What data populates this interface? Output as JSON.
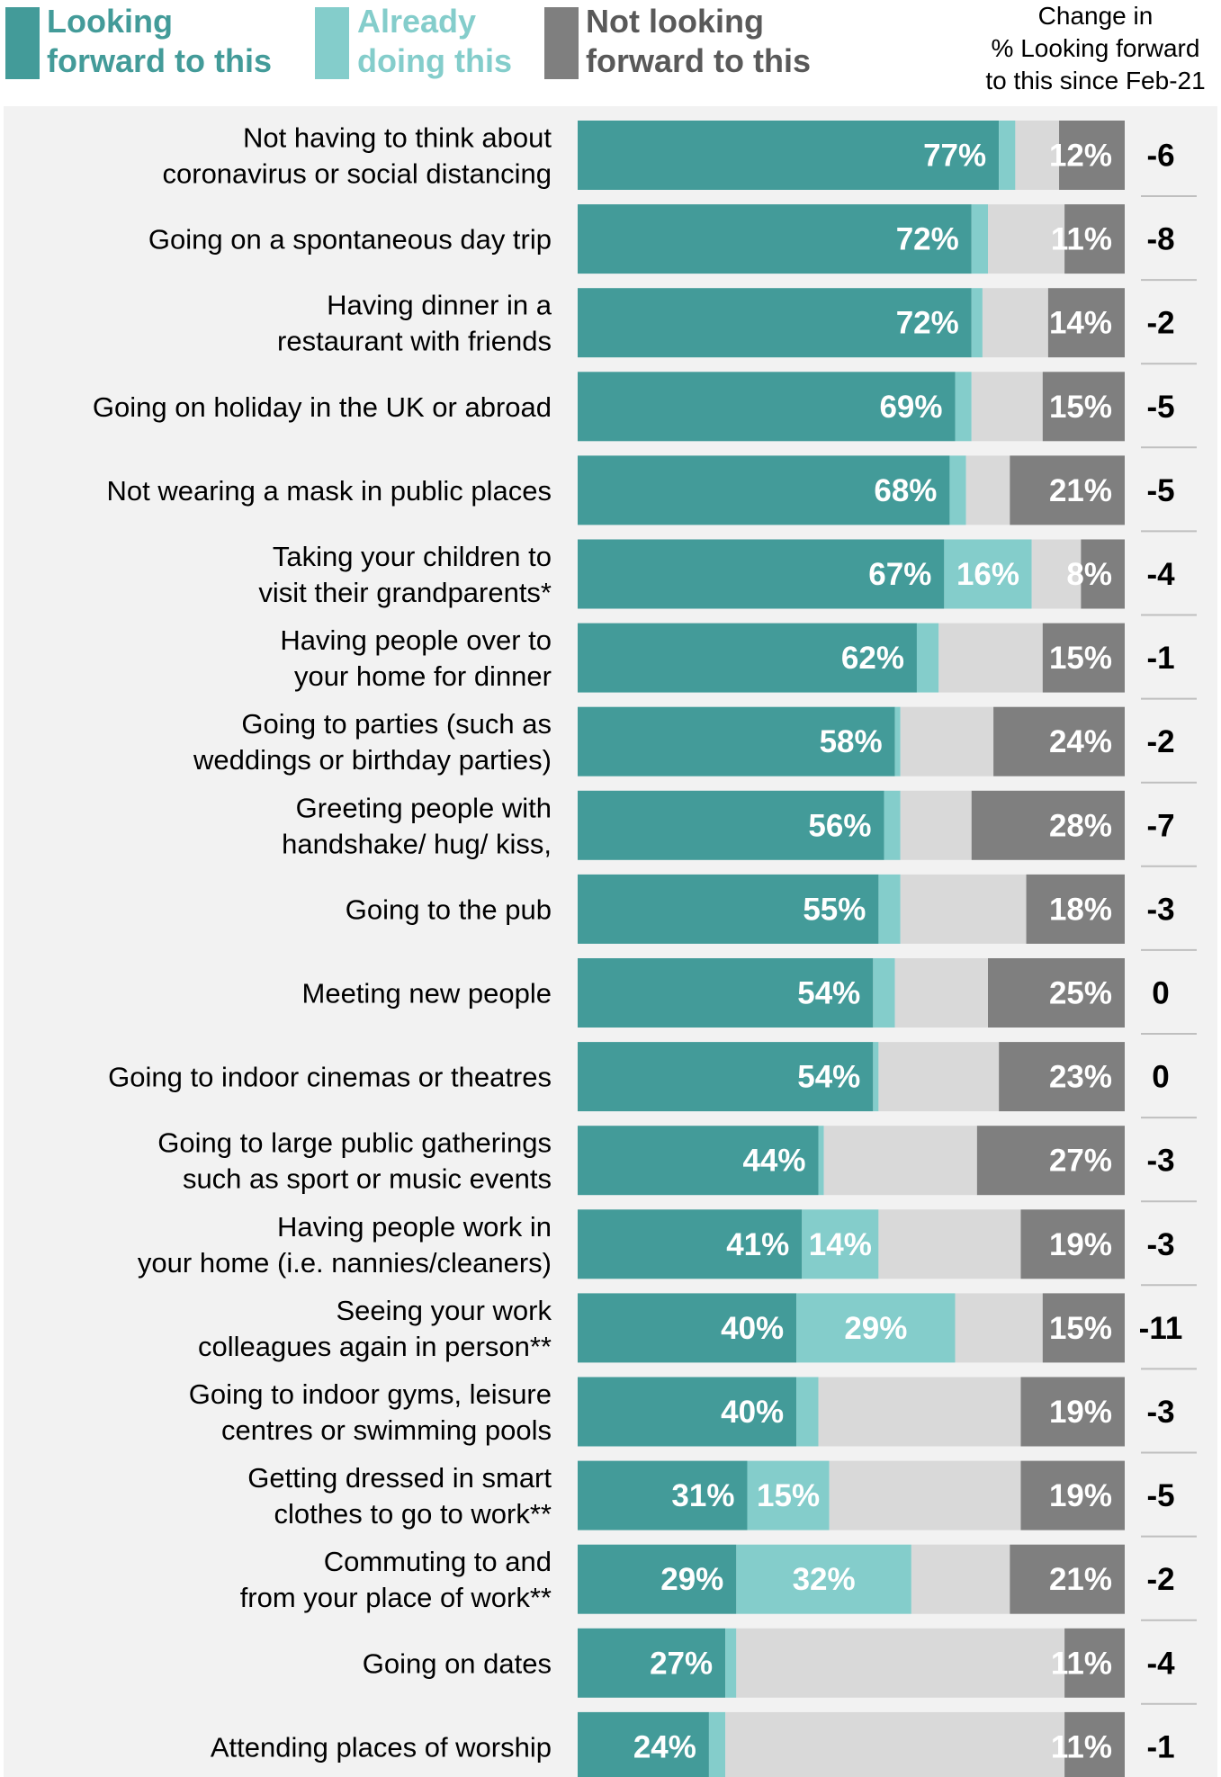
{
  "legend": {
    "looking": "Looking\nforward to this",
    "already": "Already\ndoing this",
    "not": "Not looking\nforward to this",
    "change_header": "Change in\n% Looking forward\nto this since Feb-21"
  },
  "colors": {
    "looking": "#439b99",
    "already": "#84cdcb",
    "neutral": "#d9d9d9",
    "not": "#7f7f7f",
    "panel": "#f2f2f2"
  },
  "chart_data": {
    "type": "bar",
    "orientation": "horizontal",
    "stacked": true,
    "xlim": [
      0,
      100
    ],
    "categories": [
      "Not having to think about\ncoronavirus or social distancing",
      "Going on a spontaneous day trip",
      "Having dinner in a\nrestaurant with friends",
      "Going on holiday in the UK or abroad",
      "Not wearing a mask in public places",
      "Taking your children to\nvisit their grandparents*",
      "Having people over to\nyour home for dinner",
      "Going to parties (such as\nweddings or birthday parties)",
      "Greeting people with\nhandshake/ hug/ kiss,",
      "Going to the pub",
      "Meeting new people",
      "Going to indoor cinemas or theatres",
      "Going to large public gatherings\nsuch as sport or music events",
      "Having people work in\nyour home (i.e. nannies/cleaners)",
      "Seeing your work\ncolleagues again in person**",
      "Going to indoor gyms, leisure\ncentres or swimming pools",
      "Getting dressed in smart\nclothes to go to work**",
      "Commuting to and\nfrom your place of work**",
      "Going on dates",
      "Attending places of worship"
    ],
    "series": [
      {
        "name": "Looking forward to this",
        "values": [
          77,
          72,
          72,
          69,
          68,
          67,
          62,
          58,
          56,
          55,
          54,
          54,
          44,
          41,
          40,
          40,
          31,
          29,
          27,
          24
        ],
        "labels": [
          "77%",
          "72%",
          "72%",
          "69%",
          "68%",
          "67%",
          "62%",
          "58%",
          "56%",
          "55%",
          "54%",
          "54%",
          "44%",
          "41%",
          "40%",
          "40%",
          "31%",
          "29%",
          "27%",
          "24%"
        ]
      },
      {
        "name": "Already doing this",
        "values": [
          3,
          3,
          2,
          3,
          3,
          16,
          4,
          1,
          3,
          4,
          4,
          1,
          1,
          14,
          29,
          4,
          15,
          32,
          2,
          3
        ],
        "labels": [
          "",
          "",
          "",
          "",
          "",
          "16%",
          "",
          "",
          "",
          "",
          "",
          "",
          "",
          "14%",
          "29%",
          "",
          "15%",
          "32%",
          "",
          ""
        ]
      },
      {
        "name": "",
        "values": [
          8,
          14,
          12,
          13,
          8,
          9,
          19,
          17,
          13,
          23,
          17,
          22,
          28,
          26,
          16,
          37,
          35,
          18,
          60,
          62
        ],
        "labels": [
          "",
          "",
          "",
          "",
          "",
          "",
          "",
          "",
          "",
          "",
          "",
          "",
          "",
          "",
          "",
          "",
          "",
          "",
          "",
          ""
        ]
      },
      {
        "name": "Not looking forward to this",
        "values": [
          12,
          11,
          14,
          15,
          21,
          8,
          15,
          24,
          28,
          18,
          25,
          23,
          27,
          19,
          15,
          19,
          19,
          21,
          11,
          11
        ],
        "labels": [
          "12%",
          "11%",
          "14%",
          "15%",
          "21%",
          "8%",
          "15%",
          "24%",
          "28%",
          "18%",
          "25%",
          "23%",
          "27%",
          "19%",
          "15%",
          "19%",
          "19%",
          "21%",
          "11%",
          "11%"
        ]
      }
    ],
    "change_since_feb21": [
      "-6",
      "-8",
      "-2",
      "-5",
      "-5",
      "-4",
      "-1",
      "-2",
      "-7",
      "-3",
      "0",
      "0",
      "-3",
      "-3",
      "-11",
      "-3",
      "-5",
      "-2",
      "-4",
      "-1"
    ]
  }
}
